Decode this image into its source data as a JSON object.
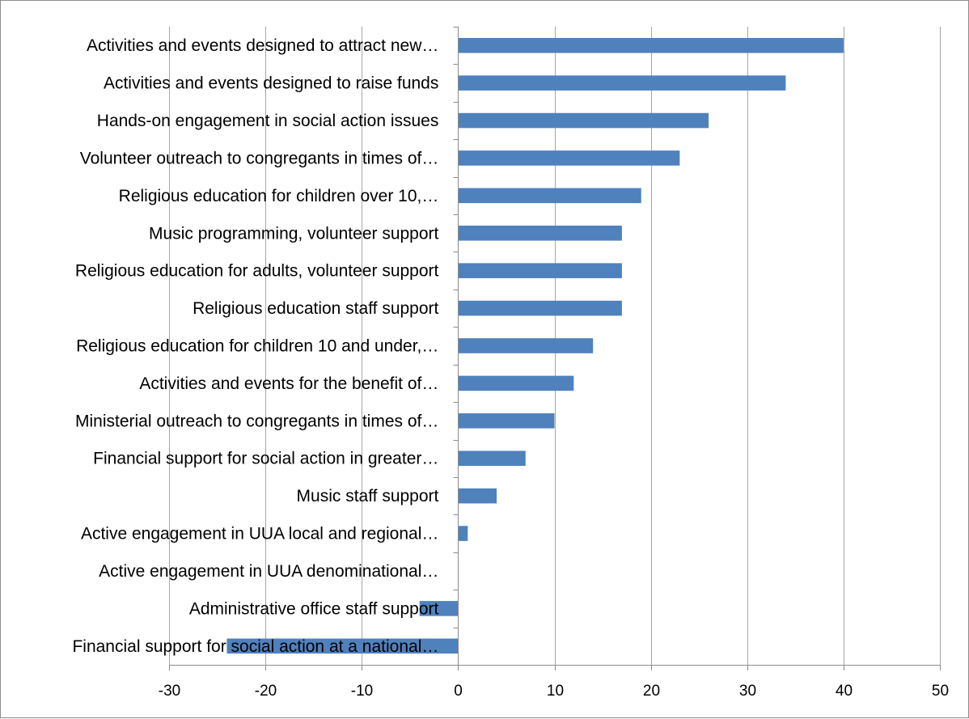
{
  "chart_data": {
    "type": "bar",
    "orientation": "horizontal",
    "title": "",
    "xlabel": "",
    "ylabel": "",
    "categories": [
      "Activities and events designed to attract new…",
      "Activities and events designed to raise funds",
      "Hands-on engagement in social action issues",
      "Volunteer outreach to congregants in times of…",
      "Religious education for children over 10,…",
      "Music programming, volunteer support",
      "Religious education for adults, volunteer support",
      "Religious education staff support",
      "Religious education for children 10 and under,…",
      "Activities and events for the benefit of…",
      "Ministerial outreach to congregants in times of…",
      "Financial support for social action in greater…",
      "Music staff support",
      "Active engagement in UUA local and regional…",
      "Active engagement in UUA denominational…",
      "Administrative office staff support",
      "Financial support for social action at a national…"
    ],
    "values": [
      40,
      34,
      26,
      23,
      19,
      17,
      17,
      17,
      14,
      12,
      10,
      7,
      4,
      1,
      0,
      -4,
      -24
    ],
    "xlim": [
      -30,
      50
    ],
    "xticks": [
      -30,
      -20,
      -10,
      0,
      10,
      20,
      30,
      40,
      50
    ],
    "xtick_labels": [
      "-30",
      "-20",
      "-10",
      "0",
      "10",
      "20",
      "30",
      "40",
      "50"
    ],
    "grid": "vertical",
    "legend": "none",
    "bar_color": "#4f81bd"
  }
}
